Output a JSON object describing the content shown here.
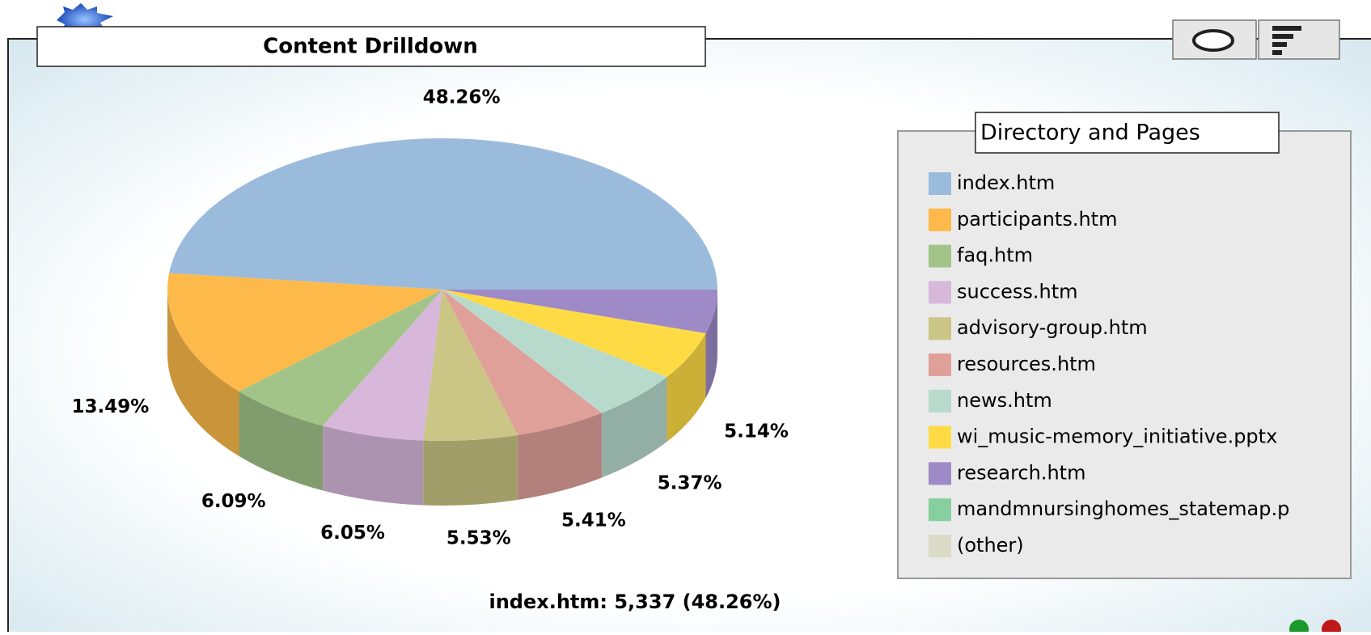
{
  "chart_data": {
    "type": "pie3d",
    "title": "Content Drilldown",
    "legend_title": "Directory and Pages",
    "categories": [
      "index.htm",
      "participants.htm",
      "faq.htm",
      "success.htm",
      "advisory-group.htm",
      "resources.htm",
      "news.htm",
      "wi_music-memory_initiative.pptx",
      "research.htm",
      "mandmnursinghomes_statemap.p",
      "(other)"
    ],
    "values": [
      48.26,
      13.49,
      6.09,
      6.05,
      5.53,
      5.41,
      5.37,
      5.14,
      4.66,
      null,
      null
    ],
    "value_labels": [
      "48.26%",
      "13.49%",
      "6.09%",
      "6.05%",
      "5.53%",
      "5.41%",
      "5.37%",
      "5.14%",
      null,
      null,
      null
    ],
    "colors": [
      "#9bbbdd",
      "#fdb94a",
      "#a3c488",
      "#d7b8db",
      "#cbc685",
      "#e0a09a",
      "#b8dacd",
      "#fedb45",
      "#9e8ac6",
      "#88cf9f",
      "#dcdbc8"
    ],
    "legend": "right",
    "footer": "index.htm: 5,337 (48.26%)"
  }
}
